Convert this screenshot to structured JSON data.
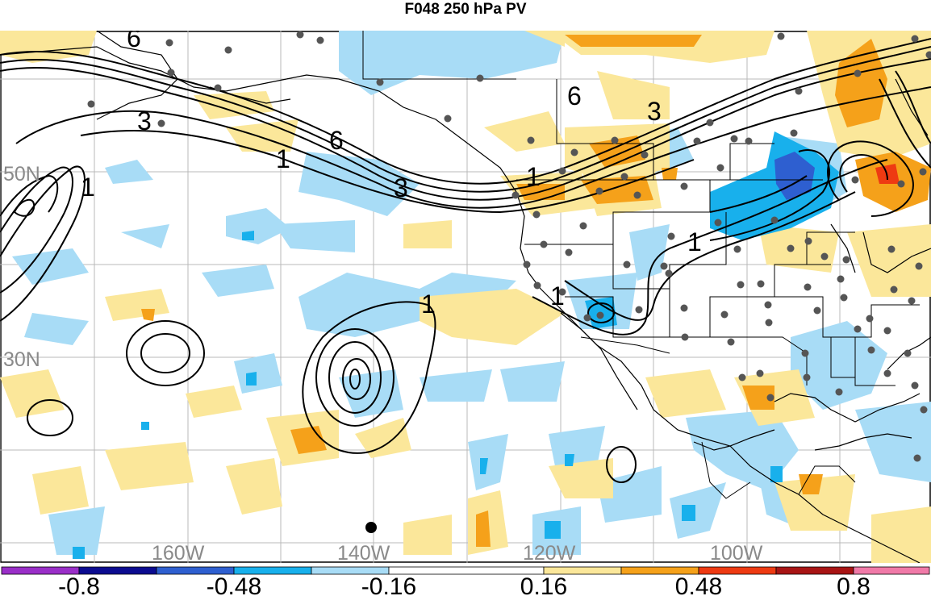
{
  "title": "F048 250 hPa PV",
  "colors": {
    "neg4": "#9a2fc8",
    "neg3": "#0b0b90",
    "neg2": "#2e5fd0",
    "neg1": "#18b0ec",
    "neg0": "#a8dcf6",
    "pos0": "#fbe79a",
    "pos1": "#f5a11a",
    "pos2": "#ee3a12",
    "pos3": "#a81414",
    "pos4": "#f07aa8"
  },
  "map": {
    "lat_labels": [
      "50N",
      "30N"
    ],
    "lon_labels": [
      "160W",
      "140W",
      "120W",
      "100W"
    ],
    "contour_labels": [
      "6",
      "3",
      "6",
      "1",
      "3",
      "1",
      "6",
      "3",
      "1",
      "1",
      "1",
      "1"
    ]
  },
  "colorbar": {
    "tick_labels": [
      "-0.8",
      "-0.48",
      "-0.16",
      "0.16",
      "0.48",
      "0.8"
    ]
  }
}
